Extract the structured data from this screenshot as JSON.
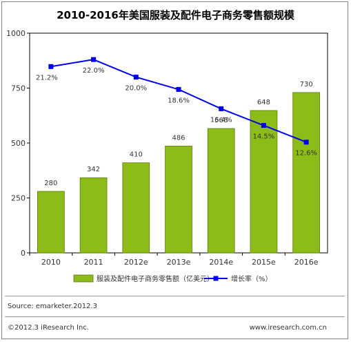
{
  "chart_data": {
    "type": "bar",
    "title": "2010-2016年美国服装及配件电子商务零售额规模",
    "categories": [
      "2010",
      "2011",
      "2012e",
      "2013e",
      "2014e",
      "2015e",
      "2016e"
    ],
    "series": [
      {
        "name": "服装及配件电子商务零售额（亿美元）",
        "type": "bar",
        "values": [
          280,
          342,
          410,
          486,
          566,
          648,
          730
        ],
        "color": "#8dbb18"
      },
      {
        "name": "增长率（%）",
        "type": "line",
        "values": [
          21.2,
          22.0,
          20.0,
          18.6,
          16.4,
          14.5,
          12.6
        ],
        "value_labels": [
          "21.2%",
          "22.0%",
          "20.0%",
          "18.6%",
          "16.4%",
          "14.5%",
          "12.6%"
        ],
        "color": "#0000ee"
      }
    ],
    "ylim": [
      0,
      1000
    ],
    "yticks": [
      0,
      250,
      500,
      750,
      1000
    ],
    "grid": false,
    "legend": "bottom"
  },
  "footer": {
    "source": "Source: emarketer.2012.3",
    "copyright": "©2012.3 iResearch Inc.",
    "website": "www.iresearch.com.cn"
  }
}
